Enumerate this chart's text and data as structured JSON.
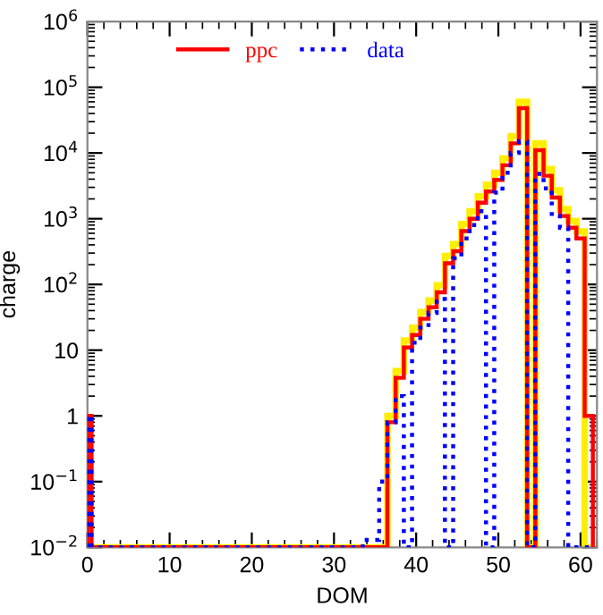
{
  "chart_data": {
    "type": "histogram",
    "xlabel": "DOM",
    "ylabel": "charge",
    "bins": [
      0,
      0.5,
      1.5,
      2.5,
      3.5,
      4.5,
      5.5,
      6.5,
      7.5,
      8.5,
      9.5,
      10.5,
      11.5,
      12.5,
      13.5,
      14.5,
      15.5,
      16.5,
      17.5,
      18.5,
      19.5,
      20.5,
      21.5,
      22.5,
      23.5,
      24.5,
      25.5,
      26.5,
      27.5,
      28.5,
      29.5,
      30.5,
      31.5,
      32.5,
      33.5,
      34.5,
      35.5,
      36.5,
      37.5,
      38.5,
      39.5,
      40.5,
      41.5,
      42.5,
      43.5,
      44.5,
      45.5,
      46.5,
      47.5,
      48.5,
      49.5,
      50.5,
      51.5,
      52.5,
      53.5,
      54.5,
      55.5,
      56.5,
      57.5,
      58.5,
      59.5,
      60.5,
      61.5
    ],
    "series": [
      {
        "color": "#ffee00",
        "line_style": "solid",
        "values": [
          null,
          null,
          null,
          null,
          null,
          null,
          null,
          null,
          null,
          null,
          null,
          null,
          null,
          null,
          null,
          null,
          null,
          null,
          null,
          null,
          null,
          null,
          null,
          null,
          null,
          null,
          null,
          null,
          null,
          null,
          null,
          null,
          null,
          null,
          null,
          null,
          null,
          1.0,
          4.8,
          14,
          22,
          38,
          57,
          97,
          270,
          410,
          830,
          1300,
          2200,
          3300,
          5000,
          8300,
          18000,
          60000,
          null,
          14000,
          5700,
          2700,
          1400,
          930,
          640,
          null
        ]
      },
      {
        "name": "ppc",
        "color": "#ff0000",
        "line_style": "solid",
        "values": [
          1,
          null,
          null,
          null,
          null,
          null,
          null,
          null,
          null,
          null,
          null,
          null,
          null,
          null,
          null,
          null,
          null,
          null,
          null,
          null,
          null,
          null,
          null,
          null,
          null,
          null,
          null,
          null,
          null,
          null,
          null,
          null,
          null,
          null,
          null,
          null,
          null,
          0.8,
          3.8,
          11,
          17,
          30,
          45,
          76,
          210,
          320,
          650,
          1000,
          1750,
          2600,
          3900,
          6500,
          14000,
          48000,
          null,
          11000,
          4500,
          2100,
          1100,
          730,
          500,
          1
        ]
      },
      {
        "name": "data",
        "color": "#0000ff",
        "line_style": "dotted",
        "values": [
          1,
          null,
          null,
          null,
          null,
          null,
          null,
          null,
          null,
          null,
          null,
          null,
          null,
          null,
          null,
          null,
          null,
          null,
          null,
          null,
          null,
          null,
          null,
          null,
          null,
          null,
          null,
          null,
          null,
          null,
          null,
          null,
          null,
          null,
          0.013,
          0.013,
          0.1,
          0.8,
          2,
          null,
          13,
          22,
          37,
          60,
          null,
          250,
          500,
          800,
          1300,
          null,
          2500,
          5000,
          10000,
          15000,
          null,
          4800,
          2900,
          1100,
          730,
          null,
          null,
          null
        ]
      }
    ],
    "log": "y",
    "xlim": [
      0,
      62
    ],
    "ylim": [
      0.01,
      1000000
    ],
    "xticks": [
      0,
      10,
      20,
      30,
      40,
      50,
      60
    ],
    "yticks": [
      {
        "value": 0.01,
        "label": "10$^{−2}$"
      },
      {
        "value": 0.1,
        "label": "10$^{−1}$"
      },
      1,
      10,
      {
        "value": 100,
        "label": "10$^{2}$"
      },
      {
        "value": 1000,
        "label": "10$^{3}$"
      },
      {
        "value": 10000,
        "label": "10$^{4}$"
      },
      {
        "value": 100000,
        "label": "10$^{5}$"
      },
      {
        "value": 1000000,
        "label": "10$^{6}$"
      }
    ],
    "grid": false,
    "legend": "top"
  }
}
